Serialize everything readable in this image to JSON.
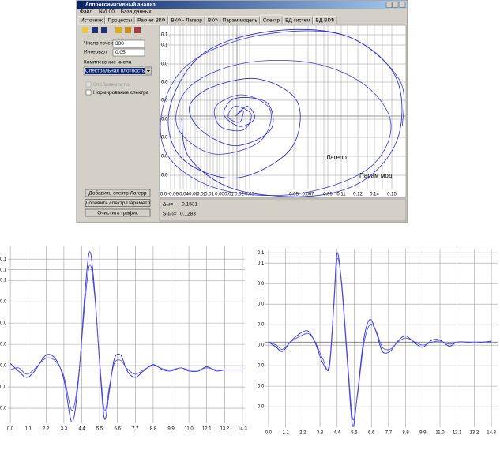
{
  "window": {
    "title": "Аппроксимативный анализ",
    "menu": [
      "Файл",
      "NVL00",
      "База данных"
    ],
    "tabs": [
      "Источник",
      "Процессы",
      "Расчет ВКФ",
      "ВКФ - Лагерр",
      "ВКФ - Парам модель",
      "Спектр",
      "БД систем",
      "БД ВКФ"
    ],
    "active_tab": 5
  },
  "form": {
    "points_label": "Число точек",
    "points_value": 300,
    "interval_label": "Интервал",
    "interval_value": 0.05,
    "complex_label": "Комплексные числа",
    "dropdown": "Спектральная плотность мо",
    "checkbox_display": "Отображать по",
    "checkbox_norm": "Нормирование спектра",
    "buttons": [
      "Добавить спектр Лагерр",
      "Добавить спектр Параметр",
      "Очистить график"
    ]
  },
  "status": {
    "delta_label": "Δω=",
    "delta_value": -0.1531,
    "s_label": "S(ω)=",
    "s_value": 0.1283
  },
  "spectrum_plot": {
    "xlim": [
      -0.11,
      0.17
    ],
    "ylim": [
      -0.12,
      0.12
    ],
    "x_labels": [
      "0.0",
      "-0.06",
      "-0.04",
      "-0.03",
      "-0.02",
      "-0.01",
      "0.00",
      "0.01",
      "0.02",
      "0.03",
      "0.05",
      "0.067",
      "0.09",
      "0.11",
      "0.12",
      "0.14",
      "0.15"
    ],
    "y_labels": [
      "0.1",
      "0.1",
      "0.0",
      "0.0",
      "0.0",
      "0.0",
      "0.0",
      "0.0",
      "0.0"
    ],
    "series": [
      {
        "name": "Лагерр",
        "color": "#3a3ad0",
        "x": [
          -0.024,
          -0.015,
          -0.019,
          -0.032,
          -0.024,
          -0.006,
          -0.015,
          -0.041,
          -0.046,
          -0.015,
          0.016,
          0.003,
          -0.05,
          -0.09,
          -0.076,
          -0.015,
          0.065,
          0.126,
          0.153,
          0.126,
          0.047,
          -0.041,
          -0.099,
          -0.107,
          -0.076,
          0.003,
          0.1,
          0.162,
          0.166
        ],
        "y": [
          -0.007,
          0.001,
          -0.015,
          -0.008,
          0.007,
          -0.004,
          -0.026,
          -0.021,
          0.007,
          0.023,
          0.001,
          -0.043,
          -0.059,
          -0.021,
          0.034,
          0.067,
          0.067,
          0.034,
          -0.021,
          -0.081,
          -0.115,
          -0.109,
          -0.065,
          0.001,
          0.067,
          0.106,
          0.106,
          0.045,
          -0.021
        ]
      },
      {
        "name": "Парам мод",
        "color": "#2424c8",
        "x": [
          -0.022,
          -0.01,
          -0.002,
          -0.019,
          -0.037,
          -0.024,
          0.012,
          0.016,
          -0.024,
          -0.063,
          -0.076,
          -0.05,
          0.003,
          0.047,
          0.038,
          -0.024,
          -0.085,
          -0.099,
          -0.063,
          0.012,
          0.1,
          0.157,
          0.162,
          0.126,
          0.065,
          -0.024,
          -0.076,
          -0.085
        ],
        "y": [
          -0.004,
          0.007,
          -0.01,
          -0.021,
          -0.004,
          0.018,
          0.012,
          -0.026,
          -0.048,
          -0.026,
          0.007,
          0.034,
          0.045,
          0.012,
          -0.054,
          -0.093,
          -0.065,
          0.001,
          0.078,
          0.111,
          0.106,
          0.051,
          -0.032,
          -0.093,
          -0.118,
          -0.109,
          -0.065,
          -0.01
        ]
      }
    ]
  },
  "charts": [
    {
      "type": "line",
      "xlim": [
        -0.15,
        14.45
      ],
      "ylim": [
        -0.037,
        0.132
      ],
      "xticks": [
        {
          "value": 0,
          "label": "0.0"
        },
        1.1,
        2.2,
        3.3,
        4.4,
        5.5,
        6.6,
        7.7,
        8.8,
        9.9,
        {
          "value": 11,
          "label": "11.0"
        },
        12.1,
        13.2,
        14.3
      ],
      "yticks": [
        {
          "value": 0.12,
          "label": "0.1"
        },
        {
          "value": 0.11,
          "label": "0.1"
        },
        {
          "value": 0.1,
          "label": "0.1"
        },
        {
          "value": 0.08,
          "label": "0.0"
        },
        {
          "value": 0.06,
          "label": "0.0"
        },
        {
          "value": 0.04,
          "label": "0.0"
        },
        {
          "value": 0.02,
          "label": "0.0"
        },
        {
          "value": 0.0,
          "label": "0.0"
        },
        {
          "value": -0.02,
          "label": "0.0"
        }
      ],
      "grid": true,
      "reference_line": 0.016,
      "x": [
        0,
        0.5,
        1.0,
        1.5,
        2.2,
        2.8,
        3.3,
        3.8,
        4.2,
        4.6,
        4.9,
        5.2,
        5.5,
        5.8,
        6.1,
        6.4,
        6.8,
        7.2,
        7.7,
        8.2,
        8.8,
        9.4,
        9.9,
        10.5,
        11.0,
        11.6,
        12.1,
        12.7,
        13.2,
        13.8,
        14.3
      ],
      "series": [
        {
          "color": "#2b2bd9",
          "values": [
            0.022,
            0.015,
            0.009,
            0.015,
            0.03,
            0.026,
            0.007,
            -0.033,
            0.007,
            0.089,
            0.127,
            0.089,
            0.022,
            -0.03,
            -0.004,
            0.026,
            0.03,
            0.015,
            0.009,
            0.015,
            0.021,
            0.016,
            0.015,
            0.018,
            0.015,
            0.015,
            0.019,
            0.015,
            0.016,
            0.016,
            0.016
          ]
        },
        {
          "color": "#5252e0",
          "values": [
            0.016,
            0.018,
            0.012,
            0.017,
            0.027,
            0.024,
            0.01,
            -0.022,
            0.01,
            0.08,
            0.115,
            0.085,
            0.025,
            -0.022,
            0.0,
            0.022,
            0.025,
            0.017,
            0.012,
            0.016,
            0.02,
            0.017,
            0.016,
            0.018,
            0.016,
            0.016,
            0.018,
            0.016,
            0.016,
            0.016,
            0.016
          ]
        }
      ]
    },
    {
      "type": "line",
      "xlim": [
        -0.2,
        14.7
      ],
      "ylim": [
        -0.063,
        0.114
      ],
      "xticks": [
        {
          "value": 0,
          "label": "0.0"
        },
        1.1,
        2.2,
        3.3,
        4.4,
        5.5,
        6.6,
        7.7,
        8.8,
        9.9,
        {
          "value": 11,
          "label": "11.0"
        },
        12.1,
        13.2,
        14.3
      ],
      "yticks": [
        {
          "value": 0.11,
          "label": "0.1"
        },
        {
          "value": 0.1,
          "label": "0.1"
        },
        {
          "value": 0.08,
          "label": "0.0"
        },
        {
          "value": 0.06,
          "label": "0.0"
        },
        {
          "value": 0.04,
          "label": "0.0"
        },
        {
          "value": 0.02,
          "label": "0.0"
        },
        {
          "value": 0.0,
          "label": "0.0"
        },
        {
          "value": -0.02,
          "label": "0.0"
        },
        {
          "value": -0.04,
          "label": "0.0"
        }
      ],
      "grid": true,
      "reference_line": 0.023,
      "x": [
        0,
        0.5,
        0.9,
        1.5,
        2.2,
        2.6,
        3.0,
        3.5,
        3.9,
        4.2,
        4.4,
        4.7,
        5.1,
        5.4,
        5.7,
        6.1,
        6.5,
        6.9,
        7.3,
        7.8,
        8.3,
        8.8,
        9.4,
        9.9,
        10.5,
        11.0,
        11.6,
        12.1,
        12.7,
        13.2,
        13.8,
        14.3
      ],
      "series": [
        {
          "color": "#2b2bd9",
          "values": [
            0.023,
            0.018,
            0.014,
            0.025,
            0.033,
            0.033,
            0.022,
            0.002,
            0.001,
            0.064,
            0.11,
            0.077,
            -0.005,
            -0.059,
            -0.028,
            0.025,
            0.045,
            0.033,
            0.014,
            0.014,
            0.024,
            0.029,
            0.022,
            0.018,
            0.025,
            0.025,
            0.019,
            0.023,
            0.023,
            0.022,
            0.023,
            0.024
          ]
        },
        {
          "color": "#5252e0",
          "values": [
            0.023,
            0.02,
            0.016,
            0.024,
            0.03,
            0.031,
            0.023,
            0.006,
            -0.002,
            0.06,
            0.104,
            0.08,
            0.0,
            -0.052,
            -0.03,
            0.02,
            0.04,
            0.034,
            0.018,
            0.016,
            0.023,
            0.027,
            0.023,
            0.02,
            0.023,
            0.024,
            0.021,
            0.023,
            0.023,
            0.023,
            0.023,
            0.023
          ]
        }
      ]
    }
  ]
}
